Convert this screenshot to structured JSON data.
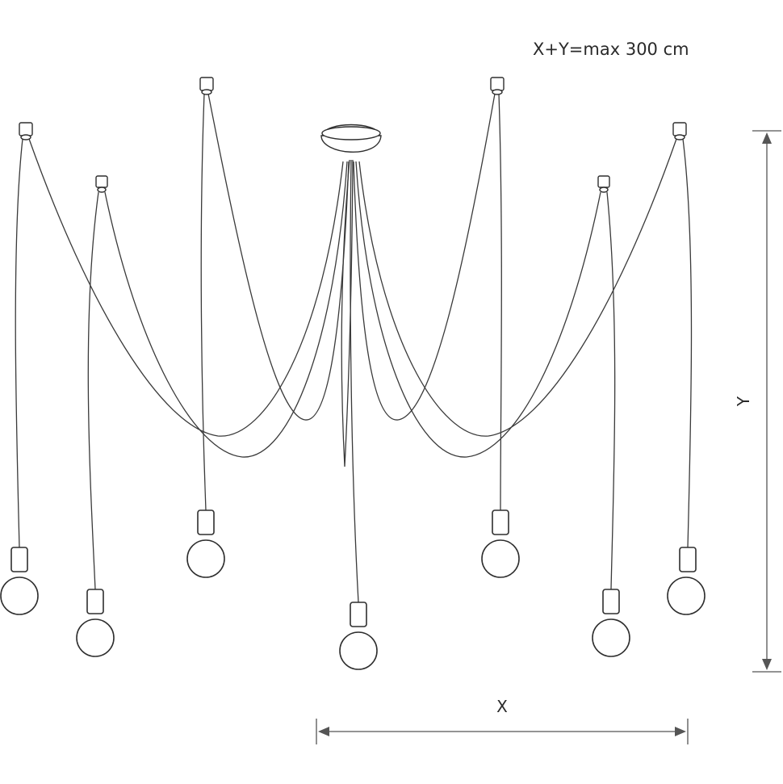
{
  "note": "X+Y=max 300 cm",
  "dimensions": {
    "x_label": "X",
    "y_label": "Y"
  },
  "colors": {
    "line": "#3a3a3a",
    "background": "#ffffff"
  }
}
